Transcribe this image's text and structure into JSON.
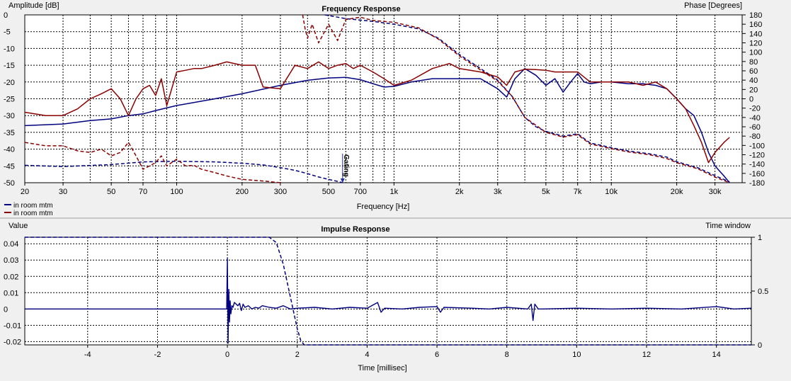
{
  "chart_data": [
    {
      "type": "line",
      "title": "Frequency Response",
      "ylabel": "Amplitude [dB]",
      "y2label": "Phase [Degrees]",
      "xlabel": "Frequency [Hz]",
      "xscale": "log",
      "xlim": [
        20,
        40000
      ],
      "ylim": [
        -50,
        0
      ],
      "y2lim": [
        -180,
        180
      ],
      "grid": true,
      "yticks": [
        "0",
        "-5",
        "-10",
        "-15",
        "-20",
        "-25",
        "-30",
        "-35",
        "-40",
        "-45",
        "-50"
      ],
      "y2ticks": [
        "180",
        "160",
        "140",
        "120",
        "100",
        "80",
        "60",
        "40",
        "20",
        "0",
        "-20",
        "-40",
        "-60",
        "-80",
        "-100",
        "-120",
        "-140",
        "-160",
        "-180"
      ],
      "xticks": [
        {
          "v": 20,
          "label": "20"
        },
        {
          "v": 30,
          "label": "30"
        },
        {
          "v": 50,
          "label": "50"
        },
        {
          "v": 70,
          "label": "70"
        },
        {
          "v": 100,
          "label": "100"
        },
        {
          "v": 200,
          "label": "200"
        },
        {
          "v": 300,
          "label": "300"
        },
        {
          "v": 500,
          "label": "500"
        },
        {
          "v": 700,
          "label": "700"
        },
        {
          "v": 1000,
          "label": "1k"
        },
        {
          "v": 2000,
          "label": "2k"
        },
        {
          "v": 3000,
          "label": "3k"
        },
        {
          "v": 5000,
          "label": "5k"
        },
        {
          "v": 7000,
          "label": "7k"
        },
        {
          "v": 10000,
          "label": "10k"
        },
        {
          "v": 20000,
          "label": "20k"
        },
        {
          "v": 30000,
          "label": "30k"
        }
      ],
      "legend": [
        "in room mtm",
        "in room mtm"
      ],
      "legend_colors": [
        "#000080",
        "#8b0000"
      ],
      "marker_label": "Gating",
      "marker_freq": 580,
      "series": [
        {
          "legend": 0,
          "kind": "amplitude",
          "color": "#000080",
          "style": "solid",
          "x": [
            20,
            30,
            40,
            50,
            60,
            70,
            80,
            100,
            150,
            200,
            300,
            400,
            500,
            600,
            700,
            800,
            900,
            1000,
            1200,
            1500,
            2000,
            2500,
            3000,
            3300,
            3600,
            4000,
            4500,
            5000,
            5500,
            6000,
            6500,
            7000,
            7500,
            8000,
            9000,
            10000,
            12000,
            14000,
            16000,
            18000,
            20000,
            22000,
            24000,
            26000,
            28000,
            30000,
            33000,
            35000
          ],
          "y": [
            -33,
            -32.5,
            -31.5,
            -31,
            -30,
            -29.5,
            -28.5,
            -27,
            -25,
            -23.5,
            -21,
            -19.5,
            -18.8,
            -18.6,
            -19.3,
            -20.5,
            -21.5,
            -21.3,
            -20,
            -19,
            -19,
            -19,
            -22,
            -24.5,
            -19,
            -16,
            -18,
            -21,
            -19,
            -23,
            -20,
            -17.5,
            -20,
            -20.5,
            -20,
            -20,
            -20.5,
            -20.5,
            -21,
            -22,
            -25,
            -28,
            -30,
            -35,
            -41,
            -45,
            -48,
            -50
          ]
        },
        {
          "legend": 0,
          "kind": "phase",
          "color": "#000080",
          "style": "dash",
          "x": [
            480,
            600,
            800,
            1000,
            1300,
            1600,
            2000,
            2500,
            3000,
            3500,
            4000,
            4500,
            5000,
            6000,
            7000,
            8000,
            9000,
            10000,
            12000,
            15000,
            18000,
            20000,
            25000,
            30000,
            35000
          ],
          "y": [
            180,
            172,
            166,
            160,
            150,
            130,
            95,
            65,
            40,
            5,
            -40,
            -60,
            -70,
            -80,
            -75,
            -95,
            -100,
            -105,
            -112,
            -118,
            -125,
            -135,
            -148,
            -165,
            -178
          ]
        },
        {
          "legend": 0,
          "kind": "amplitude",
          "color": "#000080",
          "style": "dash",
          "x": [
            20,
            30,
            50,
            70,
            100,
            150,
            200,
            250,
            300,
            350,
            400,
            450,
            500,
            550,
            580
          ],
          "y": [
            -44.8,
            -45.2,
            -44.6,
            -43.8,
            -43.6,
            -43.8,
            -44.2,
            -44.7,
            -45.5,
            -46.3,
            -47.3,
            -48.3,
            -49,
            -49.6,
            -50
          ]
        },
        {
          "legend": 1,
          "kind": "amplitude",
          "color": "#8b0000",
          "style": "solid",
          "x": [
            20,
            25,
            30,
            35,
            40,
            45,
            50,
            55,
            60,
            65,
            70,
            75,
            80,
            85,
            90,
            100,
            110,
            120,
            130,
            150,
            170,
            200,
            230,
            250,
            300,
            350,
            400,
            450,
            500,
            550,
            600,
            650,
            700,
            800,
            900,
            1000,
            1200,
            1500,
            1800,
            2000,
            2500,
            3000,
            3300,
            3600,
            4000,
            4500,
            5000,
            5500,
            6000,
            7000,
            8000,
            10000,
            12000,
            14000,
            16000,
            18000,
            20000,
            22000,
            24000,
            26000,
            28000,
            30000,
            33000,
            35000
          ],
          "y": [
            -29,
            -30,
            -30,
            -28,
            -25,
            -23.5,
            -22,
            -25,
            -30,
            -25,
            -22,
            -21,
            -24,
            -19,
            -27,
            -17,
            -16.5,
            -16,
            -16,
            -15,
            -14,
            -15,
            -15,
            -21.5,
            -22,
            -15,
            -16,
            -14,
            -16,
            -15,
            -14.5,
            -16,
            -15,
            -17,
            -19,
            -21,
            -19.5,
            -16,
            -14.5,
            -16,
            -17,
            -18.5,
            -21,
            -17,
            -16.2,
            -16.3,
            -16.5,
            -17,
            -17,
            -17,
            -20,
            -20,
            -20,
            -21,
            -20,
            -22,
            -25,
            -28,
            -33,
            -38,
            -44,
            -41,
            -38,
            -36.5
          ]
        },
        {
          "legend": 1,
          "kind": "phase",
          "color": "#8b0000",
          "style": "dash",
          "x": [
            380,
            390,
            400,
            420,
            450,
            500,
            550,
            600,
            700,
            800,
            1000,
            1300,
            1600,
            2000,
            2500,
            3000,
            3500,
            4000,
            5000,
            6000,
            7000,
            8000,
            9000,
            10000,
            12000,
            15000,
            18000,
            20000,
            25000,
            30000,
            35000
          ],
          "y": [
            180,
            150,
            130,
            160,
            120,
            160,
            125,
            170,
            175,
            168,
            164,
            152,
            128,
            92,
            62,
            38,
            5,
            -40,
            -72,
            -82,
            -77,
            -97,
            -102,
            -107,
            -114,
            -120,
            -128,
            -137,
            -150,
            -168,
            -180
          ]
        },
        {
          "legend": 1,
          "kind": "amplitude",
          "color": "#8b0000",
          "style": "dash",
          "x": [
            20,
            25,
            30,
            35,
            40,
            45,
            50,
            55,
            60,
            65,
            70,
            75,
            80,
            85,
            90,
            100,
            110,
            120,
            130,
            150,
            170,
            200,
            250,
            300
          ],
          "y": [
            -38,
            -39,
            -39,
            -40.5,
            -41,
            -40,
            -42,
            -41,
            -38,
            -42,
            -46,
            -45,
            -44,
            -42,
            -45,
            -43,
            -45,
            -44.8,
            -46,
            -47,
            -48,
            -49,
            -49.5,
            -50
          ]
        }
      ]
    },
    {
      "type": "line",
      "title": "Impulse Response",
      "ylabel": "Value",
      "y2label": "Time window",
      "xlabel": "Time [millisec]",
      "xlim": [
        -5.8,
        15
      ],
      "ylim": [
        -0.022,
        0.044
      ],
      "y2lim": [
        0,
        1
      ],
      "grid": true,
      "xticks": [
        -4,
        -2,
        0,
        2,
        4,
        6,
        8,
        10,
        12,
        14
      ],
      "yticks": [
        {
          "v": 0.04,
          "label": "0.04"
        },
        {
          "v": 0.03,
          "label": "0.03"
        },
        {
          "v": 0.02,
          "label": "0.02"
        },
        {
          "v": 0.01,
          "label": "0.01"
        },
        {
          "v": 0,
          "label": "0"
        },
        {
          "v": -0.01,
          "label": "-0.01"
        },
        {
          "v": -0.02,
          "label": "-0.02"
        }
      ],
      "y2ticks": [
        {
          "v": 1,
          "label": "1"
        },
        {
          "v": 0.5,
          "label": "0.5"
        },
        {
          "v": 0,
          "label": "0"
        }
      ],
      "series": [
        {
          "name": "impulse",
          "color": "#000080",
          "style": "solid",
          "x": [
            -5.8,
            -0.02,
            0.0,
            0.02,
            0.04,
            0.06,
            0.08,
            0.1,
            0.13,
            0.16,
            0.2,
            0.25,
            0.3,
            0.35,
            0.4,
            0.45,
            0.5,
            0.6,
            0.7,
            0.8,
            0.9,
            1.0,
            1.2,
            1.4,
            1.6,
            1.8,
            2.0,
            2.5,
            3.0,
            3.5,
            4.0,
            4.3,
            4.4,
            4.5,
            5.0,
            5.5,
            6.0,
            6.1,
            6.2,
            7.0,
            7.5,
            8.0,
            8.6,
            8.7,
            8.75,
            8.8,
            8.9,
            9.0,
            10.0,
            11.0,
            12.0,
            13.0,
            14.0,
            14.5,
            15.0
          ],
          "y": [
            0,
            0,
            0.031,
            -0.021,
            0.012,
            -0.008,
            0.005,
            -0.003,
            0.002,
            0.001,
            0.004,
            0.003,
            0.002,
            0.0035,
            -0.001,
            0.003,
            0.001,
            0.002,
            0,
            0.001,
            0.0005,
            0.002,
            0.001,
            0.0005,
            0.002,
            0,
            0.0005,
            0.001,
            0,
            0.001,
            0.0005,
            0.004,
            -0.002,
            0.0005,
            0,
            0.001,
            0.0015,
            -0.002,
            0.001,
            0.0005,
            0,
            0.001,
            0,
            0.003,
            -0.007,
            0.003,
            0,
            0,
            0.0005,
            0,
            0.0005,
            0,
            0.0015,
            0,
            0.0005
          ]
        },
        {
          "name": "time window",
          "color": "#000080",
          "style": "dash",
          "axis": "right",
          "x": [
            -5.8,
            1.2,
            1.4,
            1.6,
            1.8,
            2.0,
            2.1,
            2.2,
            15.0
          ],
          "y": [
            1,
            1,
            0.95,
            0.75,
            0.45,
            0.15,
            0.04,
            0,
            0
          ]
        }
      ]
    }
  ]
}
